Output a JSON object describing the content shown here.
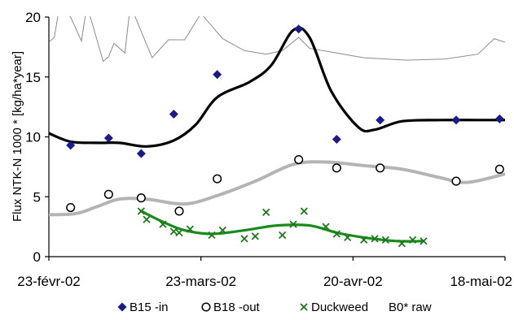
{
  "chart_data": {
    "type": "scatter",
    "title": "",
    "xlabel": "",
    "ylabel": "Flux NTK-N 1000 * [kg/ha*year]",
    "xlim": [
      "2002-02-23",
      "2002-05-18"
    ],
    "ylim": [
      0,
      20
    ],
    "x_ticks": [
      {
        "date": "2002-02-23",
        "label": "23-févr-02"
      },
      {
        "date": "2002-03-23",
        "label": "23-mars-02"
      },
      {
        "date": "2002-04-20",
        "label": "20-avr-02"
      },
      {
        "date": "2002-05-18",
        "label": "18-mai-02"
      }
    ],
    "y_ticks": [
      0,
      5,
      10,
      15,
      20
    ],
    "grid": false,
    "legend_position": "bottom",
    "series": [
      {
        "name": "B15 -in",
        "kind": "markers",
        "marker": "diamond",
        "color": "#1a1a8c",
        "points": [
          {
            "x": "2002-02-27",
            "y": 9.3
          },
          {
            "x": "2002-03-06",
            "y": 9.9
          },
          {
            "x": "2002-03-12",
            "y": 8.6
          },
          {
            "x": "2002-03-18",
            "y": 11.9
          },
          {
            "x": "2002-03-26",
            "y": 15.2
          },
          {
            "x": "2002-04-10",
            "y": 19.0
          },
          {
            "x": "2002-04-17",
            "y": 9.8
          },
          {
            "x": "2002-04-25",
            "y": 11.4
          },
          {
            "x": "2002-05-09",
            "y": 11.4
          },
          {
            "x": "2002-05-17",
            "y": 11.5
          }
        ]
      },
      {
        "name": "B18 -out",
        "kind": "markers",
        "marker": "circle",
        "color": "#000000",
        "points": [
          {
            "x": "2002-02-27",
            "y": 4.1
          },
          {
            "x": "2002-03-06",
            "y": 5.2
          },
          {
            "x": "2002-03-12",
            "y": 4.9
          },
          {
            "x": "2002-03-19",
            "y": 3.8
          },
          {
            "x": "2002-03-26",
            "y": 6.5
          },
          {
            "x": "2002-04-10",
            "y": 8.1
          },
          {
            "x": "2002-04-17",
            "y": 7.4
          },
          {
            "x": "2002-04-25",
            "y": 7.4
          },
          {
            "x": "2002-05-09",
            "y": 6.3
          },
          {
            "x": "2002-05-17",
            "y": 7.3
          }
        ]
      },
      {
        "name": "Duckweed",
        "kind": "markers",
        "marker": "x",
        "color": "#1a7a1a",
        "points": [
          {
            "x": "2002-03-12",
            "y": 3.8
          },
          {
            "x": "2002-03-13",
            "y": 3.1
          },
          {
            "x": "2002-03-16",
            "y": 2.7
          },
          {
            "x": "2002-03-18",
            "y": 2.1
          },
          {
            "x": "2002-03-19",
            "y": 2.0
          },
          {
            "x": "2002-03-21",
            "y": 2.3
          },
          {
            "x": "2002-03-25",
            "y": 1.8
          },
          {
            "x": "2002-03-27",
            "y": 2.2
          },
          {
            "x": "2002-03-31",
            "y": 1.5
          },
          {
            "x": "2002-04-02",
            "y": 1.7
          },
          {
            "x": "2002-04-04",
            "y": 3.7
          },
          {
            "x": "2002-04-07",
            "y": 1.8
          },
          {
            "x": "2002-04-09",
            "y": 2.7
          },
          {
            "x": "2002-04-11",
            "y": 3.8
          },
          {
            "x": "2002-04-15",
            "y": 2.5
          },
          {
            "x": "2002-04-17",
            "y": 1.9
          },
          {
            "x": "2002-04-19",
            "y": 1.6
          },
          {
            "x": "2002-04-22",
            "y": 1.4
          },
          {
            "x": "2002-04-24",
            "y": 1.5
          },
          {
            "x": "2002-04-26",
            "y": 1.4
          },
          {
            "x": "2002-04-29",
            "y": 1.1
          },
          {
            "x": "2002-05-01",
            "y": 1.4
          },
          {
            "x": "2002-05-03",
            "y": 1.3
          }
        ]
      },
      {
        "name": "B0* raw",
        "kind": "line",
        "color": "#8c8c8c",
        "points": [
          {
            "x": "2002-02-23",
            "y": 17.9
          },
          {
            "x": "2002-02-24",
            "y": 18.3
          },
          {
            "x": "2002-02-25",
            "y": 21.0
          },
          {
            "x": "2002-02-27",
            "y": 20.0
          },
          {
            "x": "2002-03-01",
            "y": 18.0
          },
          {
            "x": "2002-03-02",
            "y": 21.0
          },
          {
            "x": "2002-03-05",
            "y": 16.3
          },
          {
            "x": "2002-03-06",
            "y": 16.7
          },
          {
            "x": "2002-03-07",
            "y": 17.8
          },
          {
            "x": "2002-03-09",
            "y": 17.0
          },
          {
            "x": "2002-03-10",
            "y": 21.0
          },
          {
            "x": "2002-03-14",
            "y": 16.6
          },
          {
            "x": "2002-03-17",
            "y": 18.1
          },
          {
            "x": "2002-03-20",
            "y": 18.1
          },
          {
            "x": "2002-03-23",
            "y": 20.3
          },
          {
            "x": "2002-03-27",
            "y": 18.2
          },
          {
            "x": "2002-03-31",
            "y": 17.2
          },
          {
            "x": "2002-04-04",
            "y": 16.9
          },
          {
            "x": "2002-04-07",
            "y": 17.2
          },
          {
            "x": "2002-04-10",
            "y": 18.3
          },
          {
            "x": "2002-04-12",
            "y": 17.4
          },
          {
            "x": "2002-04-17",
            "y": 17.0
          },
          {
            "x": "2002-04-22",
            "y": 16.6
          },
          {
            "x": "2002-04-30",
            "y": 16.4
          },
          {
            "x": "2002-05-07",
            "y": 16.5
          },
          {
            "x": "2002-05-13",
            "y": 16.9
          },
          {
            "x": "2002-05-16",
            "y": 18.2
          },
          {
            "x": "2002-05-18",
            "y": 17.9
          }
        ]
      },
      {
        "kind": "smooth",
        "color": "#000000",
        "points": [
          {
            "x": "2002-02-23",
            "y": 10.3
          },
          {
            "x": "2002-02-27",
            "y": 9.6
          },
          {
            "x": "2002-03-04",
            "y": 9.5
          },
          {
            "x": "2002-03-08",
            "y": 9.5
          },
          {
            "x": "2002-03-13",
            "y": 9.2
          },
          {
            "x": "2002-03-18",
            "y": 9.7
          },
          {
            "x": "2002-03-22",
            "y": 11.0
          },
          {
            "x": "2002-03-26",
            "y": 13.3
          },
          {
            "x": "2002-04-01",
            "y": 14.6
          },
          {
            "x": "2002-04-05",
            "y": 16.0
          },
          {
            "x": "2002-04-09",
            "y": 18.9
          },
          {
            "x": "2002-04-12",
            "y": 18.3
          },
          {
            "x": "2002-04-16",
            "y": 13.8
          },
          {
            "x": "2002-04-21",
            "y": 10.8
          },
          {
            "x": "2002-04-24",
            "y": 10.6
          },
          {
            "x": "2002-04-29",
            "y": 11.3
          },
          {
            "x": "2002-05-06",
            "y": 11.4
          },
          {
            "x": "2002-05-13",
            "y": 11.4
          },
          {
            "x": "2002-05-18",
            "y": 11.4
          }
        ]
      },
      {
        "kind": "smooth",
        "color": "#b4b4b4",
        "points": [
          {
            "x": "2002-02-23",
            "y": 3.5
          },
          {
            "x": "2002-02-28",
            "y": 3.6
          },
          {
            "x": "2002-03-04",
            "y": 4.2
          },
          {
            "x": "2002-03-08",
            "y": 4.8
          },
          {
            "x": "2002-03-13",
            "y": 4.8
          },
          {
            "x": "2002-03-20",
            "y": 4.4
          },
          {
            "x": "2002-03-26",
            "y": 5.1
          },
          {
            "x": "2002-04-02",
            "y": 6.3
          },
          {
            "x": "2002-04-09",
            "y": 7.7
          },
          {
            "x": "2002-04-15",
            "y": 7.9
          },
          {
            "x": "2002-04-22",
            "y": 7.6
          },
          {
            "x": "2002-04-29",
            "y": 7.3
          },
          {
            "x": "2002-05-06",
            "y": 6.6
          },
          {
            "x": "2002-05-11",
            "y": 6.2
          },
          {
            "x": "2002-05-18",
            "y": 6.9
          }
        ]
      },
      {
        "kind": "smooth",
        "color": "#1a8a1a",
        "points": [
          {
            "x": "2002-03-12",
            "y": 3.8
          },
          {
            "x": "2002-03-16",
            "y": 2.9
          },
          {
            "x": "2002-03-20",
            "y": 2.2
          },
          {
            "x": "2002-03-25",
            "y": 1.9
          },
          {
            "x": "2002-03-31",
            "y": 2.2
          },
          {
            "x": "2002-04-06",
            "y": 2.6
          },
          {
            "x": "2002-04-12",
            "y": 2.6
          },
          {
            "x": "2002-04-17",
            "y": 2.0
          },
          {
            "x": "2002-04-22",
            "y": 1.6
          },
          {
            "x": "2002-04-28",
            "y": 1.3
          },
          {
            "x": "2002-05-03",
            "y": 1.3
          }
        ]
      }
    ]
  }
}
